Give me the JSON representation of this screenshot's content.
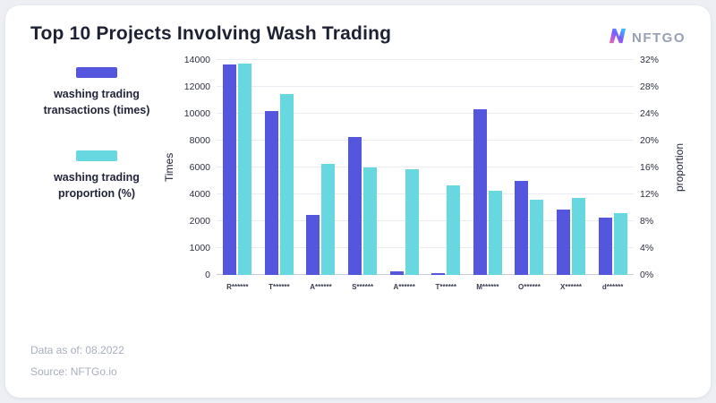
{
  "header": {
    "title": "Top 10 Projects Involving Wash Trading",
    "logo_text": "NFTGO"
  },
  "legend": [
    {
      "label": "washing trading transactions (times)",
      "color": "#5457DD"
    },
    {
      "label": "washing trading proportion (%)",
      "color": "#68D8E0"
    }
  ],
  "footer": {
    "data_as_of": "Data as of: 08.2022",
    "source": "Source: NFTGo.io"
  },
  "chart_data": {
    "type": "bar",
    "title": "Top 10 Projects Involving Wash Trading",
    "categories": [
      "R******",
      "T******",
      "A******",
      "S******",
      "A******",
      "T******",
      "M******",
      "O******",
      "X******",
      "d******"
    ],
    "series": [
      {
        "name": "washing trading transactions (times)",
        "axis": "left",
        "color": "#5457DD",
        "values": [
          13700,
          10200,
          2500,
          8300,
          150,
          80,
          10350,
          5000,
          2900,
          2300
        ]
      },
      {
        "name": "washing trading proportion (%)",
        "axis": "right",
        "color": "#68D8E0",
        "values": [
          31.5,
          27.0,
          16.5,
          16.0,
          15.7,
          13.4,
          12.5,
          11.2,
          11.5,
          9.2
        ]
      }
    ],
    "left_axis": {
      "title": "Times",
      "ticks": [
        0,
        1000,
        2000,
        4000,
        6000,
        8000,
        10000,
        12000,
        14000
      ]
    },
    "right_axis": {
      "title": "proportion",
      "max": 32,
      "tick_labels": [
        "0%",
        "4%",
        "8%",
        "12%",
        "16%",
        "20%",
        "24%",
        "28%",
        "32%"
      ]
    },
    "grid": true,
    "legend_position": "left"
  }
}
